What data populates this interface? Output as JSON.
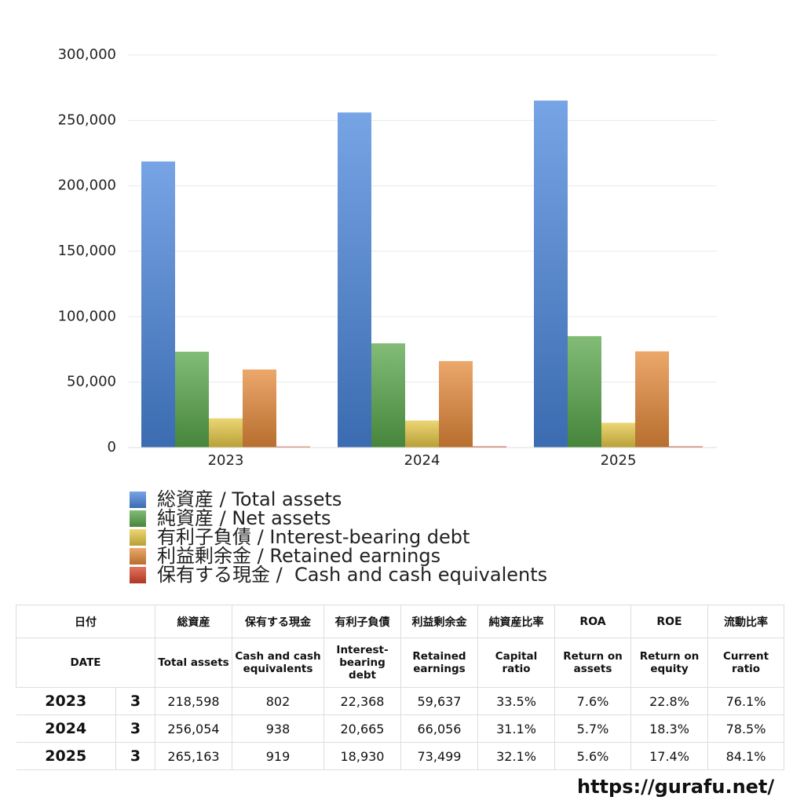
{
  "chart_data": {
    "type": "bar",
    "categories": [
      "2023",
      "2024",
      "2025"
    ],
    "series": [
      {
        "name": "総資産 / Total assets",
        "color": "#4a86dc",
        "values": [
          218598,
          256054,
          265163
        ]
      },
      {
        "name": "純資産 / Net assets",
        "color": "#58a64a",
        "values": [
          73230,
          79633,
          85117
        ]
      },
      {
        "name": "有利子負債 / Interest-bearing debt",
        "color": "#e6c846",
        "values": [
          22368,
          20665,
          18930
        ]
      },
      {
        "name": "利益剰余金 / Retained earnings",
        "color": "#e58a3a",
        "values": [
          59637,
          66056,
          73499
        ]
      },
      {
        "name": "保有する現金 /  Cash and cash equivalents",
        "color": "#d8452a",
        "values": [
          802,
          938,
          919
        ]
      }
    ],
    "ylim": [
      0,
      300000
    ],
    "yticks": [
      0,
      {
        "value": 50000,
        "label": "50,000"
      },
      {
        "value": 100000,
        "label": "100,000"
      },
      {
        "value": 150000,
        "label": "150,000"
      },
      {
        "value": 200000,
        "label": "200,000"
      },
      {
        "value": 250000,
        "label": "250,000"
      },
      {
        "value": 300000,
        "label": "300,000"
      }
    ],
    "grid": true
  },
  "table": {
    "header": [
      [
        "日付",
        "総資産",
        "保有する現金",
        "有利子負債",
        "利益剰余金",
        "純資産比率",
        "ROA",
        "ROE",
        "流動比率"
      ],
      [
        "DATE",
        "Total assets",
        "Cash and cash equivalents",
        "Interest-bearing debt",
        "Retained earnings",
        "Capital ratio",
        "Return on assets",
        "Return on equity",
        "Current ratio"
      ]
    ],
    "rows": [
      [
        "2023",
        "3",
        "218,598",
        "802",
        "22,368",
        "59,637",
        "33.5%",
        "7.6%",
        "22.8%",
        "76.1%"
      ],
      [
        "2024",
        "3",
        "256,054",
        "938",
        "20,665",
        "66,056",
        "31.1%",
        "5.7%",
        "18.3%",
        "78.5%"
      ],
      [
        "2025",
        "3",
        "265,163",
        "919",
        "18,930",
        "73,499",
        "32.1%",
        "5.6%",
        "17.4%",
        "84.1%"
      ]
    ]
  },
  "footer": "https://gurafu.net/"
}
